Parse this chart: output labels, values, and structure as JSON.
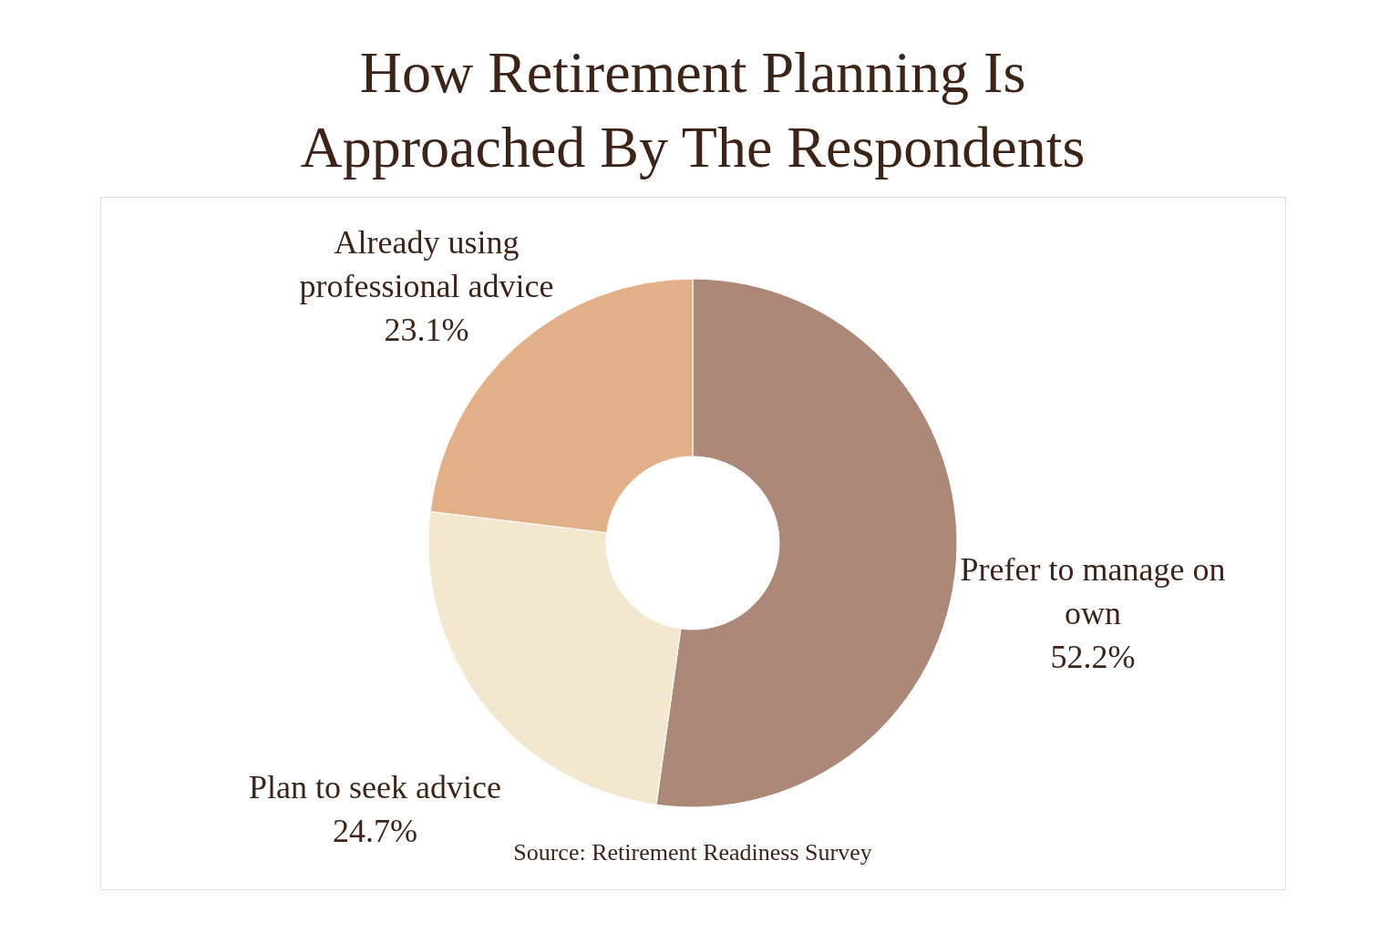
{
  "chart_data": {
    "type": "donut",
    "title": [
      "How Retirement Planning Is",
      "Approached By The Respondents"
    ],
    "categories": [
      "Prefer to manage on own",
      "Plan to seek advice",
      "Already using professional advice"
    ],
    "values": [
      52.2,
      24.7,
      23.1
    ],
    "value_labels": [
      "52.2%",
      "24.7%",
      "23.1%"
    ],
    "colors": [
      "#ab8878",
      "#f3e8cf",
      "#e2b088"
    ],
    "legend": false,
    "annotations": [
      "Source: Retirement Readiness Survey"
    ]
  }
}
